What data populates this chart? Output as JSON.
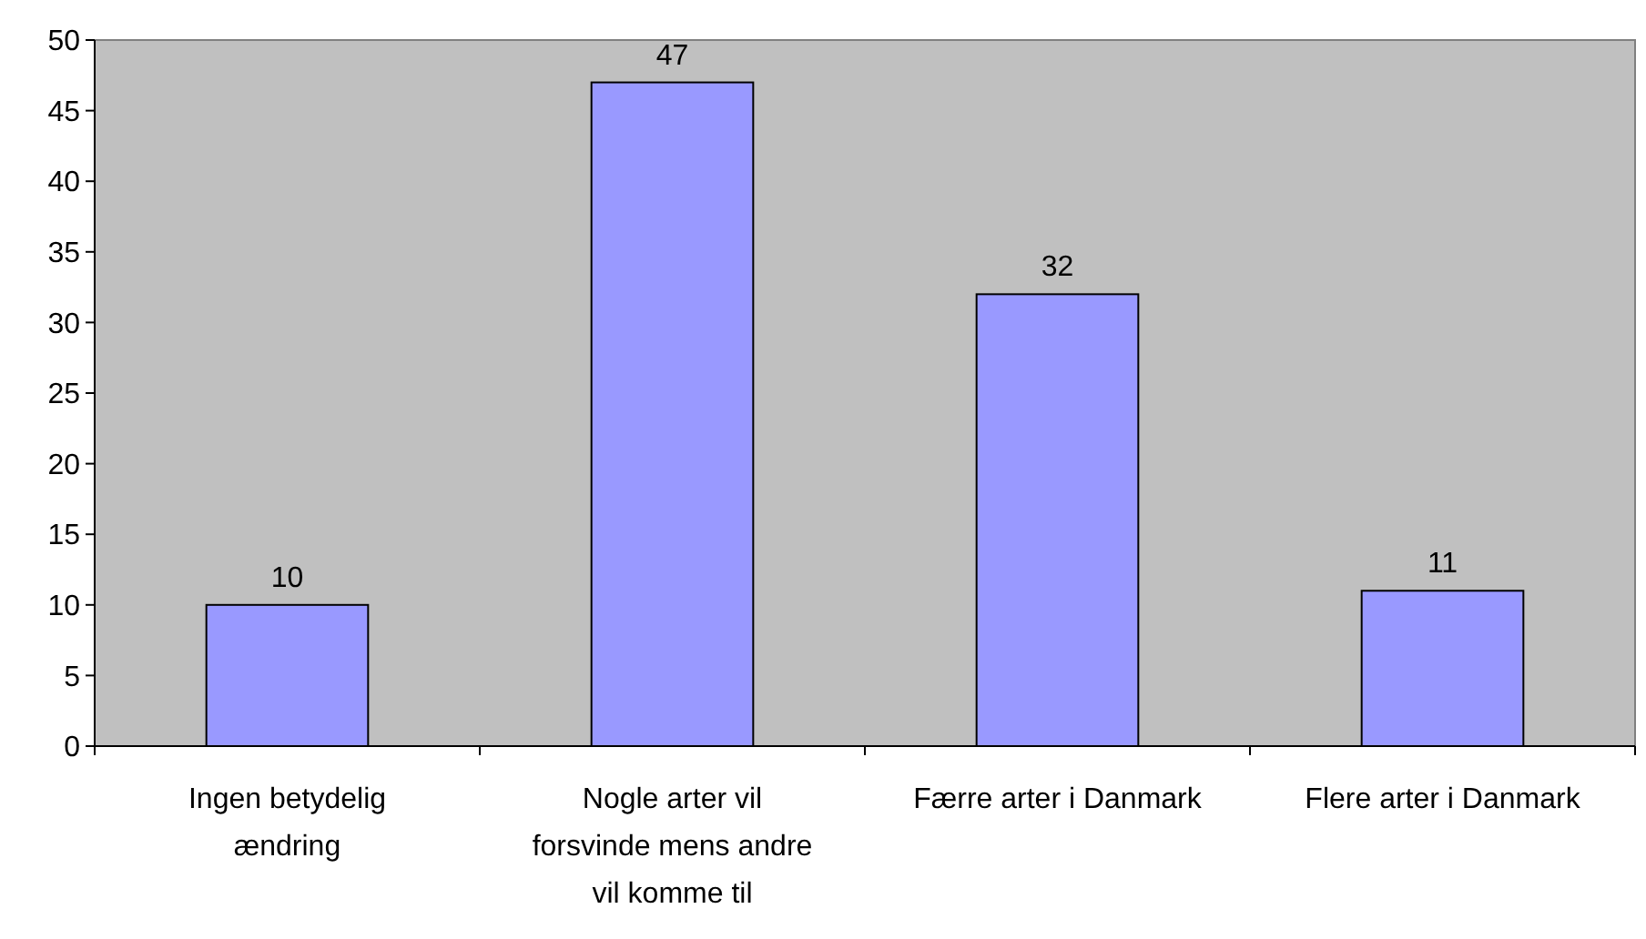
{
  "chart_data": {
    "type": "bar",
    "categories": [
      "Ingen betydelig ændring",
      "Nogle arter vil forsvinde mens andre vil komme til",
      "Færre arter i Danmark",
      "Flere arter i Danmark"
    ],
    "values": [
      10,
      47,
      32,
      11
    ],
    "color": "#9999ff",
    "data_labels": true,
    "ylim": [
      0,
      50
    ],
    "yticks": [
      0,
      5,
      10,
      15,
      20,
      25,
      30,
      35,
      40,
      45,
      50
    ],
    "grid": false
  }
}
